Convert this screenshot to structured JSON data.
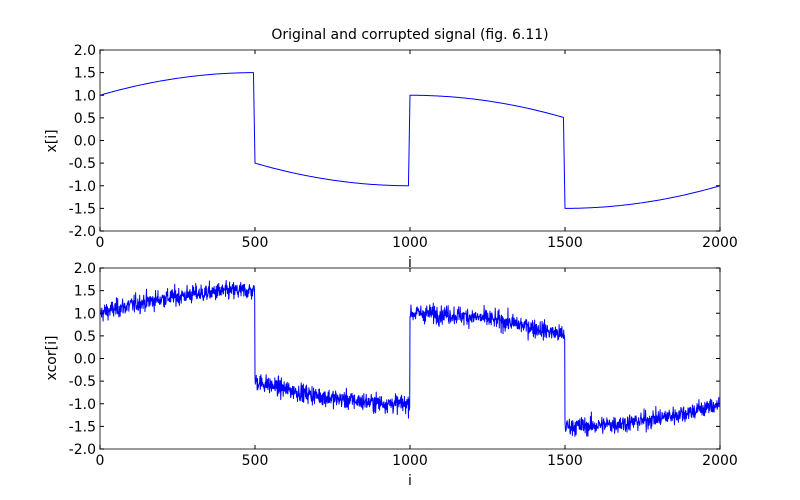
{
  "figure": {
    "title": "Original and corrupted signal (fig. 6.11)",
    "background": "#ffffff",
    "line_color": "#0000ff"
  },
  "chart_data": [
    {
      "type": "line",
      "title": "Original and corrupted signal (fig. 6.11)",
      "xlabel": "i",
      "ylabel": "x[i]",
      "xlim": [
        0,
        2000
      ],
      "ylim": [
        -2.0,
        2.0
      ],
      "xticks": [
        "0",
        "500",
        "1000",
        "1500",
        "2000"
      ],
      "yticks": [
        "2.0",
        "1.5",
        "1.0",
        "0.5",
        "0.0",
        "-0.5",
        "-1.0",
        "-1.5",
        "-2.0"
      ],
      "grid": false,
      "series": [
        {
          "name": "x",
          "color": "#0000ff",
          "segments": [
            {
              "x_start": 0,
              "x_end": 500,
              "y_start": 1.0,
              "y_end": 1.5,
              "shape": "concave-rising"
            },
            {
              "x_start": 500,
              "x_end": 1000,
              "y_start": -0.5,
              "y_end": -1.0,
              "shape": "concave-falling"
            },
            {
              "x_start": 1000,
              "x_end": 1500,
              "y_start": 1.0,
              "y_end": 0.5,
              "shape": "convex-falling"
            },
            {
              "x_start": 1500,
              "x_end": 2000,
              "y_start": -1.5,
              "y_end": -1.0,
              "shape": "convex-rising"
            }
          ]
        }
      ]
    },
    {
      "type": "line",
      "title": "",
      "xlabel": "i",
      "ylabel": "xcor[i]",
      "xlim": [
        0,
        2000
      ],
      "ylim": [
        -2.0,
        2.0
      ],
      "xticks": [
        "0",
        "500",
        "1000",
        "1500",
        "2000"
      ],
      "yticks": [
        "2.0",
        "1.5",
        "1.0",
        "0.5",
        "0.0",
        "-0.5",
        "-1.0",
        "-1.5",
        "-2.0"
      ],
      "grid": false,
      "series": [
        {
          "name": "xcor",
          "color": "#0000ff",
          "description": "x[i] plus additive noise (std approx 0.1)",
          "noise_std": 0.1
        }
      ]
    }
  ]
}
